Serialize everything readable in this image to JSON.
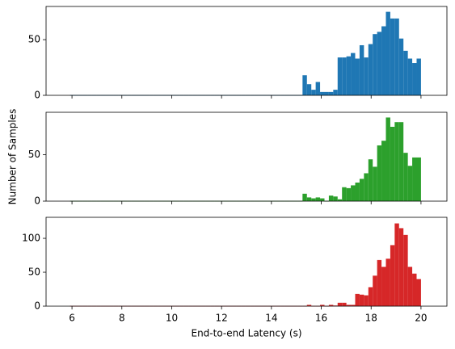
{
  "chart_data": [
    {
      "type": "histogram",
      "color": "#1f77b4",
      "bins": [
        5.92,
        6.096,
        6.272,
        6.448,
        6.624,
        6.8,
        6.976,
        7.152,
        7.328,
        7.504,
        7.68,
        7.856,
        8.032,
        8.208,
        8.384,
        8.56,
        8.736,
        8.912,
        9.088,
        9.264,
        9.44,
        9.616,
        9.792,
        9.968,
        10.144,
        10.32,
        10.496,
        10.672,
        10.848,
        11.024,
        11.2,
        11.376,
        11.552,
        11.728,
        11.904,
        12.08,
        12.256,
        12.432,
        12.608,
        12.784,
        12.96,
        13.136,
        13.312,
        13.488,
        13.664,
        13.84,
        14.016,
        14.192,
        14.368,
        14.544,
        14.72,
        14.896,
        15.072,
        15.248,
        15.424,
        15.6,
        15.776,
        15.952,
        16.128,
        16.304,
        16.48,
        16.656,
        16.832,
        17.008,
        17.184,
        17.36,
        17.536,
        17.712,
        17.888,
        18.064,
        18.24,
        18.416,
        18.592,
        18.768,
        18.944,
        19.12,
        19.296,
        19.472,
        19.648,
        19.824,
        20.0
      ],
      "values": [
        0,
        0,
        0,
        0,
        0,
        0,
        0,
        0,
        0,
        0,
        0,
        0,
        0,
        0,
        0,
        0,
        0,
        0,
        0,
        0,
        0,
        0,
        0,
        0,
        0,
        0,
        0,
        0,
        0,
        0,
        0,
        0,
        0,
        0,
        0,
        0,
        0,
        0,
        0,
        0,
        0,
        0,
        0,
        0,
        0,
        0,
        0,
        0,
        0,
        0,
        0,
        0,
        0,
        18,
        10,
        5,
        12,
        3,
        3,
        3,
        5,
        34,
        34,
        35,
        38,
        33,
        45,
        34,
        46,
        55,
        57,
        62,
        75,
        69,
        69,
        51,
        40,
        33,
        29,
        33
      ],
      "xlim": [
        4.96,
        21.04
      ],
      "xticks": [
        6,
        8,
        10,
        12,
        14,
        16,
        18,
        20
      ],
      "ylim": [
        0,
        79.8
      ],
      "yticks": [
        0,
        50
      ]
    },
    {
      "type": "histogram",
      "color": "#2ca02c",
      "y_label": "Number of Samples",
      "bins": [
        5.92,
        6.096,
        6.272,
        6.448,
        6.624,
        6.8,
        6.976,
        7.152,
        7.328,
        7.504,
        7.68,
        7.856,
        8.032,
        8.208,
        8.384,
        8.56,
        8.736,
        8.912,
        9.088,
        9.264,
        9.44,
        9.616,
        9.792,
        9.968,
        10.144,
        10.32,
        10.496,
        10.672,
        10.848,
        11.024,
        11.2,
        11.376,
        11.552,
        11.728,
        11.904,
        12.08,
        12.256,
        12.432,
        12.608,
        12.784,
        12.96,
        13.136,
        13.312,
        13.488,
        13.664,
        13.84,
        14.016,
        14.192,
        14.368,
        14.544,
        14.72,
        14.896,
        15.072,
        15.248,
        15.424,
        15.6,
        15.776,
        15.952,
        16.128,
        16.304,
        16.48,
        16.656,
        16.832,
        17.008,
        17.184,
        17.36,
        17.536,
        17.712,
        17.888,
        18.064,
        18.24,
        18.416,
        18.592,
        18.768,
        18.944,
        19.12,
        19.296,
        19.472,
        19.648,
        19.824,
        20.0
      ],
      "values": [
        0,
        0,
        0,
        0,
        0,
        0,
        0,
        0,
        0,
        0,
        0,
        0,
        0,
        0,
        0,
        0,
        0,
        0,
        0,
        0,
        0,
        0,
        0,
        0,
        0,
        0,
        0,
        0,
        0,
        0,
        0,
        0,
        0,
        0,
        0,
        0,
        0,
        0,
        0,
        0,
        0,
        0,
        0,
        0,
        0,
        0,
        0,
        0,
        0,
        0,
        0,
        0,
        0,
        8,
        4,
        3,
        4,
        3,
        0,
        6,
        5,
        2,
        15,
        14,
        17,
        20,
        24,
        30,
        45,
        37,
        60,
        65,
        90,
        80,
        85,
        85,
        52,
        38,
        47,
        47
      ],
      "xlim": [
        4.96,
        21.04
      ],
      "xticks": [
        6,
        8,
        10,
        12,
        14,
        16,
        18,
        20
      ],
      "ylim": [
        0,
        95.6
      ],
      "yticks": [
        0,
        50
      ]
    },
    {
      "type": "histogram",
      "color": "#d62728",
      "x_label": "End-to-end Latency (s)",
      "bins": [
        5.92,
        6.096,
        6.272,
        6.448,
        6.624,
        6.8,
        6.976,
        7.152,
        7.328,
        7.504,
        7.68,
        7.856,
        8.032,
        8.208,
        8.384,
        8.56,
        8.736,
        8.912,
        9.088,
        9.264,
        9.44,
        9.616,
        9.792,
        9.968,
        10.144,
        10.32,
        10.496,
        10.672,
        10.848,
        11.024,
        11.2,
        11.376,
        11.552,
        11.728,
        11.904,
        12.08,
        12.256,
        12.432,
        12.608,
        12.784,
        12.96,
        13.136,
        13.312,
        13.488,
        13.664,
        13.84,
        14.016,
        14.192,
        14.368,
        14.544,
        14.72,
        14.896,
        15.072,
        15.248,
        15.424,
        15.6,
        15.776,
        15.952,
        16.128,
        16.304,
        16.48,
        16.656,
        16.832,
        17.008,
        17.184,
        17.36,
        17.536,
        17.712,
        17.888,
        18.064,
        18.24,
        18.416,
        18.592,
        18.768,
        18.944,
        19.12,
        19.296,
        19.472,
        19.648,
        19.824,
        20.0
      ],
      "values": [
        0,
        0,
        0,
        0,
        0,
        0,
        0,
        0,
        0,
        0,
        0,
        0,
        0,
        0,
        0,
        0,
        0,
        0,
        0,
        0,
        0,
        0,
        0,
        0,
        0,
        0,
        0,
        0,
        0,
        0,
        0,
        0,
        0,
        0,
        0,
        0,
        0,
        0,
        0,
        0,
        0,
        0,
        0,
        0,
        0,
        0,
        0,
        0,
        0,
        0,
        0,
        0,
        0,
        0,
        2,
        0,
        0,
        2,
        0,
        2,
        1,
        5,
        5,
        2,
        2,
        18,
        17,
        16,
        28,
        45,
        68,
        58,
        70,
        90,
        122,
        115,
        105,
        58,
        48,
        40
      ],
      "xlim": [
        4.96,
        21.04
      ],
      "xticks": [
        6,
        8,
        10,
        12,
        14,
        16,
        18,
        20
      ],
      "ylim": [
        0,
        131
      ],
      "yticks": [
        0,
        50,
        100
      ]
    }
  ]
}
